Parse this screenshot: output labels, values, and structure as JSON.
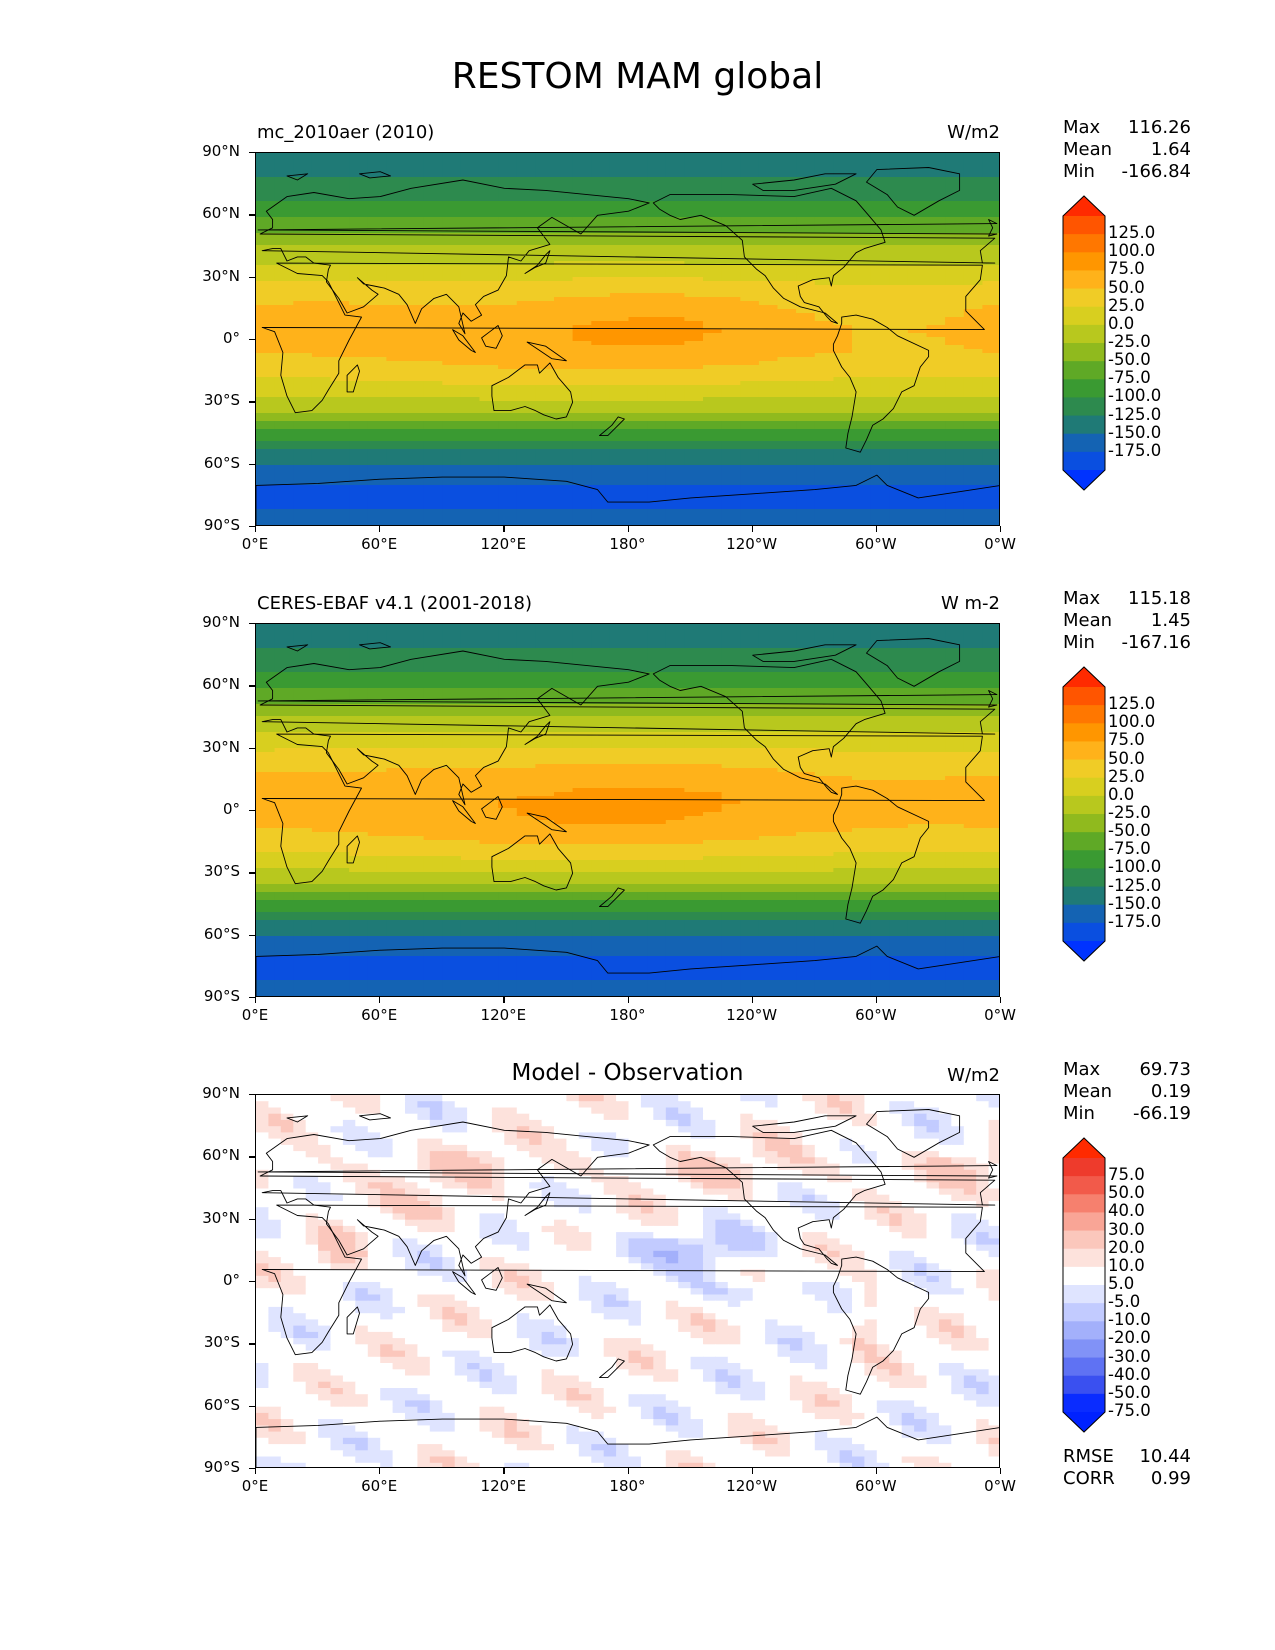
{
  "figure": {
    "title": "RESTOM MAM global"
  },
  "axes": {
    "y_ticks": [
      "90°N",
      "60°N",
      "30°N",
      "0°",
      "30°S",
      "60°S",
      "90°S"
    ],
    "x_ticks": [
      "0°E",
      "60°E",
      "120°E",
      "180°",
      "120°W",
      "60°W",
      "0°W"
    ]
  },
  "panels": [
    {
      "title_left": "mc_2010aer (2010)",
      "title_center": "",
      "units": "W/m2",
      "stats": {
        "max_label": "Max",
        "max": "116.26",
        "mean_label": "Mean",
        "mean": "1.64",
        "min_label": "Min",
        "min": "-166.84"
      },
      "colorbar_labels": [
        "125.0",
        "100.0",
        "75.0",
        "50.0",
        "25.0",
        "0.0",
        "-25.0",
        "-50.0",
        "-75.0",
        "-100.0",
        "-125.0",
        "-150.0",
        "-175.0"
      ],
      "colorbar_colors": [
        "#ff2a00",
        "#ff5500",
        "#ff7700",
        "#ff9600",
        "#ffb21a",
        "#f0cc26",
        "#d8cf1f",
        "#b8c81e",
        "#90ba1e",
        "#5fa926",
        "#3a9a32",
        "#2d8a4e",
        "#1f7a76",
        "#1463b3",
        "#0a4fe0",
        "#0033ff"
      ]
    },
    {
      "title_left": "CERES-EBAF v4.1 (2001-2018)",
      "title_center": "",
      "units": "W m-2",
      "stats": {
        "max_label": "Max",
        "max": "115.18",
        "mean_label": "Mean",
        "mean": "1.45",
        "min_label": "Min",
        "min": "-167.16"
      },
      "colorbar_labels": [
        "125.0",
        "100.0",
        "75.0",
        "50.0",
        "25.0",
        "0.0",
        "-25.0",
        "-50.0",
        "-75.0",
        "-100.0",
        "-125.0",
        "-150.0",
        "-175.0"
      ],
      "colorbar_colors": [
        "#ff2a00",
        "#ff5500",
        "#ff7700",
        "#ff9600",
        "#ffb21a",
        "#f0cc26",
        "#d8cf1f",
        "#b8c81e",
        "#90ba1e",
        "#5fa926",
        "#3a9a32",
        "#2d8a4e",
        "#1f7a76",
        "#1463b3",
        "#0a4fe0",
        "#0033ff"
      ]
    },
    {
      "title_left": "",
      "title_center": "Model - Observation",
      "units": "W/m2",
      "stats": {
        "max_label": "Max",
        "max": "69.73",
        "mean_label": "Mean",
        "mean": "0.19",
        "min_label": "Min",
        "min": "-66.19"
      },
      "colorbar_labels": [
        "75.0",
        "50.0",
        "40.0",
        "30.0",
        "20.0",
        "10.0",
        "5.0",
        "-5.0",
        "-10.0",
        "-20.0",
        "-30.0",
        "-40.0",
        "-50.0",
        "-75.0"
      ],
      "colorbar_colors": [
        "#ff2a00",
        "#ee3b2c",
        "#f25a4a",
        "#f6806e",
        "#f9a596",
        "#fbc7bc",
        "#fde2dc",
        "#ffffff",
        "#dfe4ff",
        "#c2cbff",
        "#a3b0fb",
        "#8192f7",
        "#5f72f3",
        "#3a50f0",
        "#0a2cff",
        "#0022ff"
      ],
      "bottom_stats": {
        "rmse_label": "RMSE",
        "rmse": "10.44",
        "corr_label": "CORR",
        "corr": "0.99"
      }
    }
  ],
  "chart_data": [
    {
      "type": "heatmap",
      "title": "mc_2010aer (2010)",
      "units": "W/m2",
      "x_range": [
        0,
        360
      ],
      "y_range": [
        -90,
        90
      ],
      "levels": [
        -175,
        -150,
        -125,
        -100,
        -75,
        -50,
        -25,
        0,
        25,
        50,
        75,
        100,
        125
      ],
      "zonal_mean_profile": {
        "lat": [
          85,
          75,
          65,
          55,
          45,
          35,
          25,
          15,
          5,
          -5,
          -15,
          -25,
          -35,
          -45,
          -55,
          -65,
          -75,
          -85
        ],
        "value": [
          -110,
          -95,
          -70,
          -35,
          0,
          30,
          60,
          80,
          90,
          85,
          65,
          35,
          0,
          -60,
          -110,
          -135,
          -165,
          -140
        ]
      }
    },
    {
      "type": "heatmap",
      "title": "CERES-EBAF v4.1 (2001-2018)",
      "units": "W m-2",
      "x_range": [
        0,
        360
      ],
      "y_range": [
        -90,
        90
      ],
      "levels": [
        -175,
        -150,
        -125,
        -100,
        -75,
        -50,
        -25,
        0,
        25,
        50,
        75,
        100,
        125
      ],
      "zonal_mean_profile": {
        "lat": [
          85,
          75,
          65,
          55,
          45,
          35,
          25,
          15,
          5,
          -5,
          -15,
          -25,
          -35,
          -45,
          -55,
          -65,
          -75,
          -85
        ],
        "value": [
          -110,
          -95,
          -70,
          -35,
          0,
          35,
          65,
          85,
          95,
          90,
          70,
          40,
          0,
          -60,
          -110,
          -135,
          -165,
          -140
        ]
      }
    },
    {
      "type": "heatmap",
      "title": "Model - Observation",
      "units": "W/m2",
      "x_range": [
        0,
        360
      ],
      "y_range": [
        -90,
        90
      ],
      "levels": [
        -75,
        -50,
        -40,
        -30,
        -20,
        -10,
        -5,
        5,
        10,
        20,
        30,
        40,
        50,
        75
      ]
    }
  ]
}
